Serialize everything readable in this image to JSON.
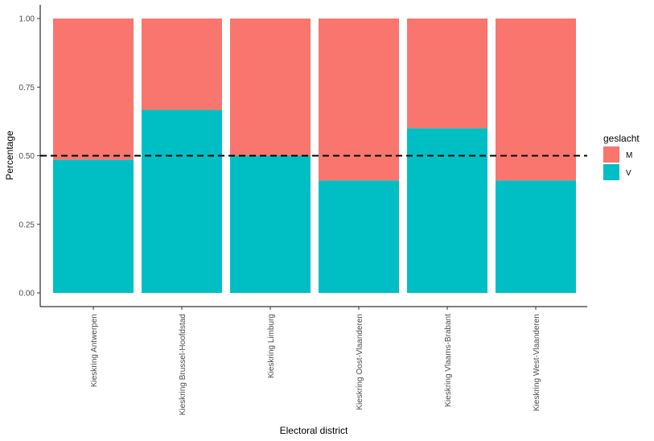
{
  "chart_data": {
    "type": "bar",
    "stacked": true,
    "categories": [
      "Kieskring Antwerpen",
      "Kieskring Brussel-Hoofdstad",
      "Kieskring Limburg",
      "Kieskring Oost-Vlaanderen",
      "Kieskring Vlaams-Brabant",
      "Kieskring West-Vlaanderen"
    ],
    "series": [
      {
        "name": "V",
        "values": [
          0.485,
          0.667,
          0.5,
          0.41,
          0.6,
          0.41
        ]
      },
      {
        "name": "M",
        "values": [
          0.515,
          0.333,
          0.5,
          0.59,
          0.4,
          0.59
        ]
      }
    ],
    "reference_line": {
      "y": 0.5,
      "style": "dashed"
    },
    "xlabel": "Electoral district",
    "ylabel": "Percentage",
    "yticks": [
      "0.00",
      "0.25",
      "0.50",
      "0.75",
      "1.00"
    ],
    "ylim": [
      0,
      1
    ],
    "legend": {
      "title": "geslacht",
      "position": "right",
      "entries": [
        "M",
        "V"
      ]
    },
    "colors": {
      "M": "#F8766D",
      "V": "#00BFC4",
      "axis": "#000000"
    },
    "grid": false
  }
}
